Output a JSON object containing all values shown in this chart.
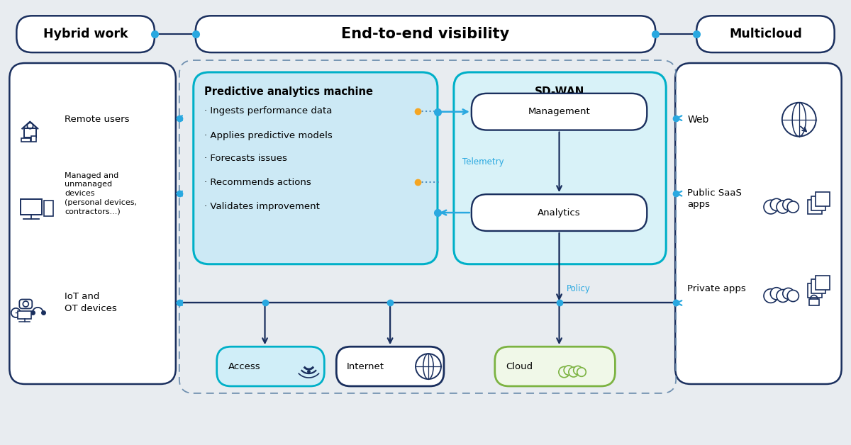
{
  "bg_color": "#e8ecf0",
  "dark_blue": "#1a2f5e",
  "cyan_border": "#00b0c8",
  "cyan_fill": "#d0eef8",
  "green_border": "#7cb342",
  "green_fill": "#f0f8e8",
  "white": "#ffffff",
  "orange": "#f5a623",
  "arrow_blue": "#29a8e0",
  "dot_blue": "#29a8e0",
  "line_dark": "#1a2f5e",
  "title": "End-to-end visibility",
  "left_title": "Hybrid work",
  "right_title": "Multicloud",
  "pred_title": "Predictive analytics machine",
  "sdwan_title": "SD-WAN",
  "mgmt_label": "Management",
  "analytics_label": "Analytics",
  "telemetry_label": "Telemetry",
  "policy_label": "Policy",
  "bullet_items": [
    "· Ingests performance data",
    "· Applies predictive models",
    "· Forecasts issues",
    "· Recommends actions",
    "· Validates improvement"
  ],
  "fig_width": 12.0,
  "fig_height": 6.28
}
